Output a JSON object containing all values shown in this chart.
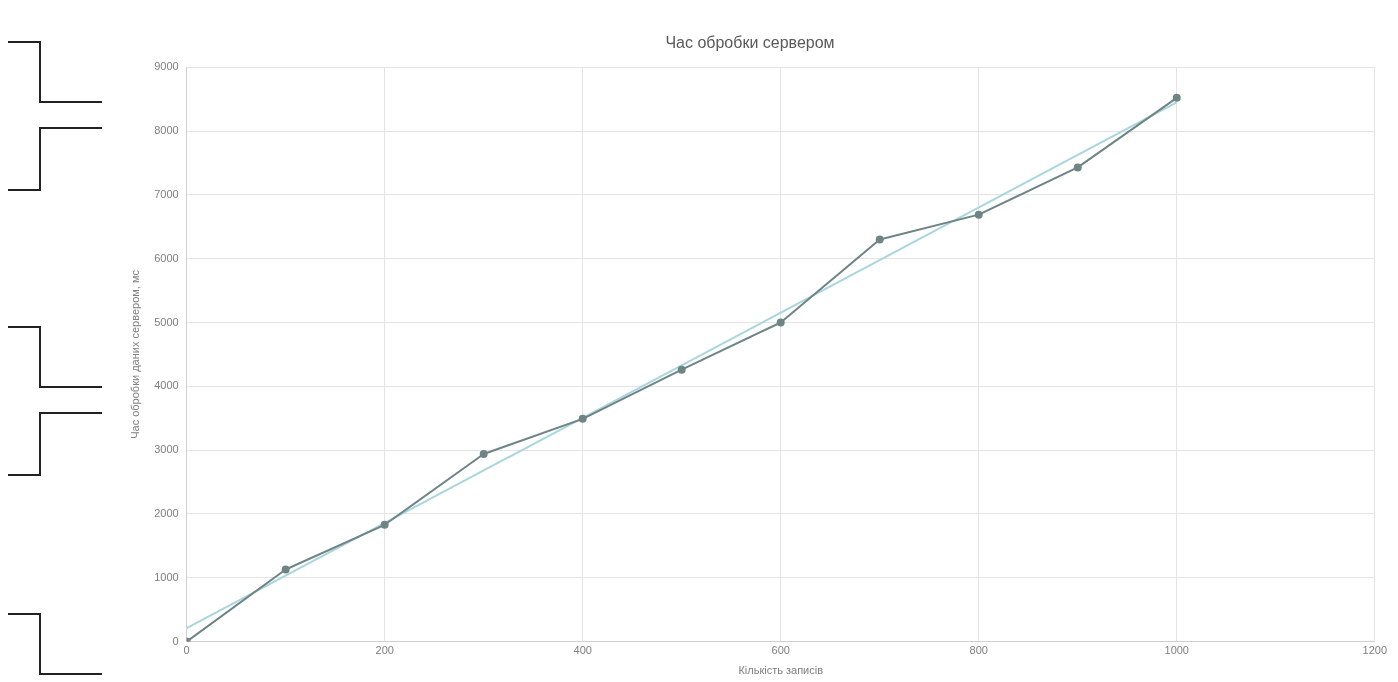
{
  "chart_data": {
    "type": "line",
    "title": "Час обробки сервером",
    "xlabel": "Кількість записів",
    "ylabel": "Час обробки даних сервером, мс",
    "x": [
      0,
      100,
      200,
      300,
      400,
      500,
      600,
      700,
      800,
      900,
      1000
    ],
    "series": [
      {
        "color": "#6f8585",
        "marker": "circle",
        "values": [
          0,
          1130,
          1830,
          2940,
          3490,
          4260,
          5000,
          6300,
          6690,
          7430,
          8520
        ]
      },
      {
        "type": "line",
        "color": "#a9d6de",
        "marker": "none",
        "x": [
          0,
          1000
        ],
        "values": [
          210,
          8450
        ]
      }
    ],
    "xlim": [
      0,
      1200
    ],
    "xticks": [
      0,
      200,
      400,
      600,
      800,
      1000,
      1200
    ],
    "ylim": [
      0,
      9000
    ],
    "yticks": [
      0,
      1000,
      2000,
      3000,
      4000,
      5000,
      6000,
      7000,
      8000,
      9000
    ],
    "grid": true,
    "legend": false,
    "line_style": "solid"
  }
}
